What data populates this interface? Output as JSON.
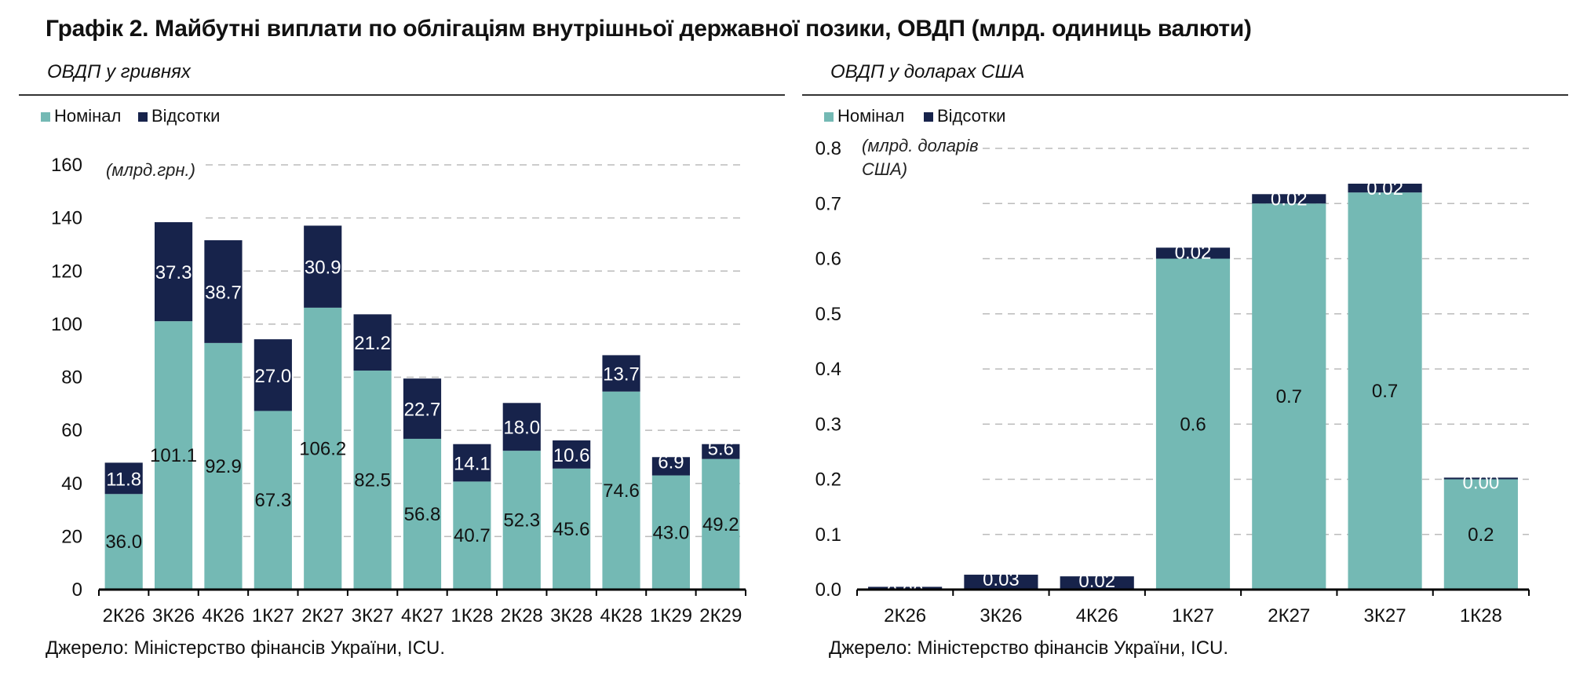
{
  "page": {
    "title": "Графік 2. Майбутні виплати по облігаціям внутрішньої державної позики, ОВДП (млрд. одиниць валюти)"
  },
  "colors": {
    "nominal": "#74b9b4",
    "interest": "#17234b",
    "grid": "#bbbbbb",
    "axis": "#000000"
  },
  "left_panel": {
    "subtitle": "ОВДП у гривнях",
    "source": "Джерело: Міністерство фінансів України, ICU."
  },
  "right_panel": {
    "subtitle": "ОВДП у доларах США",
    "source": "Джерело: Міністерство фінансів України, ICU."
  },
  "chart_data": [
    {
      "type": "bar",
      "stacked": true,
      "unit_label": "(млрд.грн.)",
      "categories": [
        "2К26",
        "3К26",
        "4К26",
        "1К27",
        "2К27",
        "3К27",
        "4К27",
        "1К28",
        "2К28",
        "3К28",
        "4К28",
        "1К29",
        "2К29"
      ],
      "series": [
        {
          "name": "Номінал",
          "color": "#74b9b4",
          "values": [
            36.0,
            101.1,
            92.9,
            67.3,
            106.2,
            82.5,
            56.8,
            40.7,
            52.3,
            45.6,
            74.6,
            43.0,
            49.2
          ],
          "labels": [
            "36.0",
            "101.1",
            "92.9",
            "67.3",
            "106.2",
            "82.5",
            "56.8",
            "40.7",
            "52.3",
            "45.6",
            "74.6",
            "43.0",
            "49.2"
          ]
        },
        {
          "name": "Відсотки",
          "color": "#17234b",
          "values": [
            11.8,
            37.3,
            38.7,
            27.0,
            30.9,
            21.2,
            22.7,
            14.1,
            18.0,
            10.6,
            13.7,
            6.9,
            5.6
          ],
          "labels": [
            "11.8",
            "37.3",
            "38.7",
            "27.0",
            "30.9",
            "21.2",
            "22.7",
            "14.1",
            "18.0",
            "10.6",
            "13.7",
            "6.9",
            "5.6"
          ]
        }
      ],
      "ylim": [
        0,
        160
      ],
      "yticks": [
        "0",
        "20",
        "40",
        "60",
        "80",
        "100",
        "120",
        "140",
        "160"
      ],
      "grid": true,
      "legend": "top-left"
    },
    {
      "type": "bar",
      "stacked": true,
      "unit_label_lines": [
        "(млрд. доларів",
        "США)"
      ],
      "categories": [
        "2К26",
        "3К26",
        "4К26",
        "1К27",
        "2К27",
        "3К27",
        "1К28"
      ],
      "series": [
        {
          "name": "Номінал",
          "color": "#74b9b4",
          "values": [
            0.0,
            0.0,
            0.0,
            0.6,
            0.7,
            0.72,
            0.2
          ],
          "labels": [
            "",
            "",
            "",
            "0.6",
            "0.7",
            "0.7",
            "0.2"
          ]
        },
        {
          "name": "Відсотки",
          "color": "#17234b",
          "values": [
            0.005,
            0.027,
            0.024,
            0.02,
            0.017,
            0.016,
            0.003
          ],
          "labels": [
            "0.00",
            "0.03",
            "0.02",
            "0.02",
            "0.02",
            "0.02",
            "0.00"
          ]
        }
      ],
      "ylim": [
        0,
        0.8
      ],
      "yticks": [
        "0.0",
        "0.1",
        "0.2",
        "0.3",
        "0.4",
        "0.5",
        "0.6",
        "0.7",
        "0.8"
      ],
      "grid": true,
      "legend": "top-left"
    }
  ]
}
